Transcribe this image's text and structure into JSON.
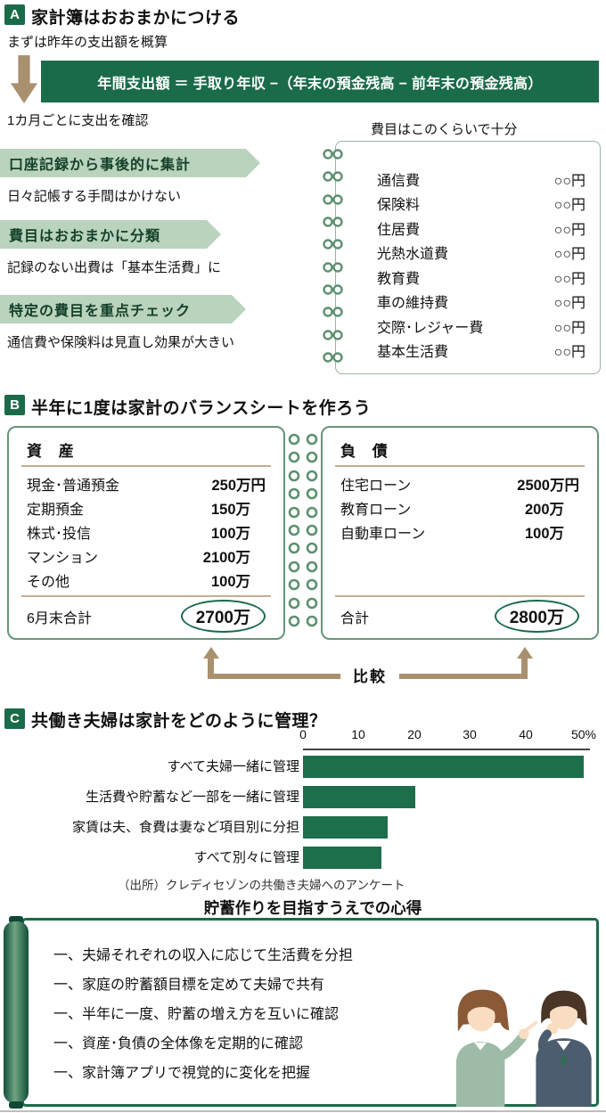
{
  "colors": {
    "accent_green": "#1a6b4a",
    "light_green": "#b9d3bc",
    "ring_green": "#5d9070",
    "arrow_brown": "#a9906f",
    "bar_green": "#1d6e4a"
  },
  "sectionA": {
    "badge": "A",
    "title": "家計簿はおおまかにつける",
    "lead": "まずは昨年の支出額を概算",
    "formula": "年間支出額 ＝ 手取り年収 −（年末の預金残高 − 前年末の預金残高）",
    "monthly_note": "1カ月ごとに支出を確認",
    "points": [
      {
        "label": "口座記録から事後的に集計",
        "desc": "日々記帳する手間はかけない"
      },
      {
        "label": "費目はおおまかに分類",
        "desc": "記録のない出費は「基本生活費」に"
      },
      {
        "label": "特定の費目を重点チェック",
        "desc": "通信費や保険料は見直し効果が大きい"
      }
    ],
    "notebook": {
      "caption": "費目はこのくらいで十分",
      "items": [
        {
          "name": "通信費",
          "value": "○○円"
        },
        {
          "name": "保険料",
          "value": "○○円"
        },
        {
          "name": "住居費",
          "value": "○○円"
        },
        {
          "name": "光熱水道費",
          "value": "○○円"
        },
        {
          "name": "教育費",
          "value": "○○円"
        },
        {
          "name": "車の維持費",
          "value": "○○円"
        },
        {
          "name": "交際･レジャー費",
          "value": "○○円"
        },
        {
          "name": "基本生活費",
          "value": "○○円"
        }
      ]
    }
  },
  "sectionB": {
    "badge": "B",
    "title": "半年に1度は家計のバランスシートを作ろう",
    "assets": {
      "header": "資 産",
      "rows": [
        {
          "name": "現金･普通預金",
          "value": "250万円"
        },
        {
          "name": "定期預金",
          "value": "150万"
        },
        {
          "name": "株式･投信",
          "value": "100万"
        },
        {
          "name": "マンション",
          "value": "2100万"
        },
        {
          "name": "その他",
          "value": "100万"
        }
      ],
      "total_label": "6月末合計",
      "total_value": "2700万"
    },
    "liabilities": {
      "header": "負 債",
      "rows": [
        {
          "name": "住宅ローン",
          "value": "2500万円"
        },
        {
          "name": "教育ローン",
          "value": "200万"
        },
        {
          "name": "自動車ローン",
          "value": "100万"
        }
      ],
      "total_label": "合計",
      "total_value": "2800万"
    },
    "compare_label": "比較"
  },
  "sectionC": {
    "badge": "C",
    "title": "共働き夫婦は家計をどのように管理？",
    "source": "（出所）クレディセゾンの共働き夫婦へのアンケート",
    "scroll_title": "貯蓄作りを目指すうえでの心得",
    "scroll_items": [
      "一、夫婦それぞれの収入に応じて生活費を分担",
      "一、家庭の貯蓄額目標を定めて夫婦で共有",
      "一、半年に一度、貯蓄の増え方を互いに確認",
      "一、資産･負債の全体像を定期的に確認",
      "一、家計簿アプリで視覚的に変化を把握"
    ]
  },
  "chart_data": {
    "type": "bar",
    "orientation": "horizontal",
    "title": "共働き夫婦は家計をどのように管理？",
    "categories": [
      "すべて夫婦一緒に管理",
      "生活費や貯蓄など一部を一緒に管理",
      "家賃は夫、食費は妻など項目別に分担",
      "すべて別々に管理"
    ],
    "values": [
      50,
      20,
      15,
      14
    ],
    "unit": "%",
    "xlim": [
      0,
      50
    ],
    "tick_labels": [
      "0",
      "10",
      "20",
      "30",
      "40",
      "50%"
    ],
    "grid": false,
    "legend": false,
    "source": "（出所）クレディセゾンの共働き夫婦へのアンケート"
  }
}
